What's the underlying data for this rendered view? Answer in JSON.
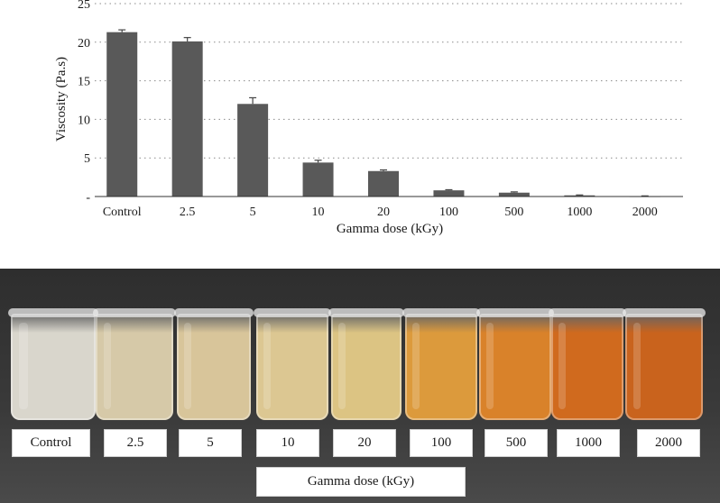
{
  "chart_data": {
    "type": "bar",
    "categories": [
      "Control",
      "2.5",
      "5",
      "10",
      "20",
      "100",
      "500",
      "1000",
      "2000"
    ],
    "values": [
      21.3,
      20.1,
      12.0,
      4.4,
      3.3,
      0.8,
      0.5,
      0.15,
      0.05
    ],
    "errors": [
      0.3,
      0.5,
      0.8,
      0.3,
      0.15,
      0.08,
      0.1,
      0.05,
      0.03
    ],
    "yticks": [
      "25",
      "20",
      "15",
      "10",
      "5",
      "-"
    ],
    "ylim": [
      0,
      25
    ],
    "xlabel": "Gamma dose (kGy)",
    "ylabel": "Viscosity (Pa.s)",
    "grid": "dotted horizontal",
    "bar_color": "#595959"
  },
  "photo": {
    "sample_labels": [
      "Control",
      "2.5",
      "5",
      "10",
      "20",
      "100",
      "500",
      "1000",
      "2000"
    ],
    "axis_label": "Gamma dose (kGy)",
    "liquid_colors": [
      "#d9d6cc",
      "#d6c9a8",
      "#d8c59a",
      "#dcc792",
      "#dcc483",
      "#dc9a3c",
      "#d9822a",
      "#d06a1e",
      "#c9631d"
    ]
  }
}
